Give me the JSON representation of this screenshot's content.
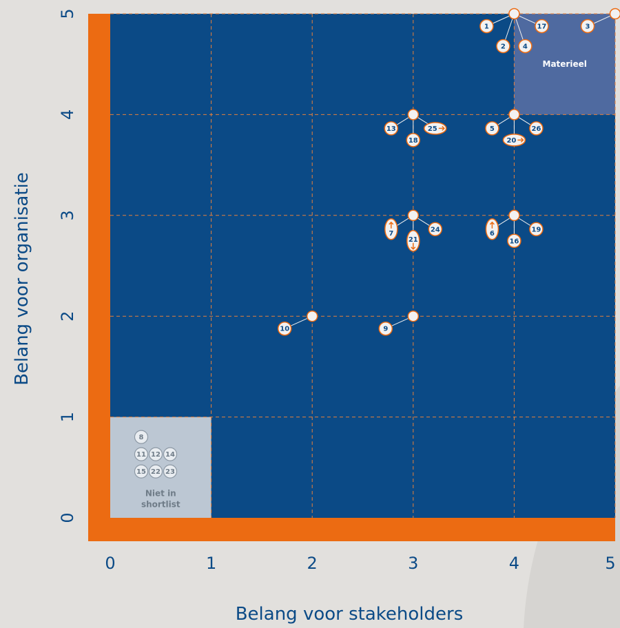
{
  "chart_data": {
    "type": "scatter",
    "xlabel": "Belang voor stakeholders",
    "ylabel": "Belang voor organisatie",
    "xlim": [
      0,
      5
    ],
    "ylim": [
      0,
      5
    ],
    "x_ticks": [
      "0",
      "1",
      "2",
      "3",
      "4",
      "5"
    ],
    "y_ticks": [
      "0",
      "1",
      "2",
      "3",
      "4",
      "5"
    ],
    "grid": true,
    "colors": {
      "background": "#e2e0dd",
      "plot": "#0b4a86",
      "axis_bar": "#ec6b12",
      "grid": "#e8803a",
      "node": "#f2f2f2",
      "label_text": "#0b4a86",
      "arrow": "#ec6b12",
      "zone_materieel": "#4f6aa0",
      "zone_shortlist": "#bcc7d3"
    },
    "zones": [
      {
        "name": "Materieel",
        "x_range": [
          4,
          5
        ],
        "y_range": [
          4,
          5
        ]
      },
      {
        "name": "Niet in shortlist",
        "x_range": [
          0,
          1
        ],
        "y_range": [
          0,
          1
        ]
      }
    ],
    "groups": [
      {
        "x": 4,
        "y": 5,
        "items": [
          {
            "label": "1"
          },
          {
            "label": "17"
          },
          {
            "label": "2"
          },
          {
            "label": "4"
          }
        ]
      },
      {
        "x": 5,
        "y": 5,
        "items": [
          {
            "label": "3"
          }
        ]
      },
      {
        "x": 3,
        "y": 4,
        "items": [
          {
            "label": "13"
          },
          {
            "label": "25",
            "arrow": "right"
          },
          {
            "label": "18"
          }
        ]
      },
      {
        "x": 4,
        "y": 4,
        "items": [
          {
            "label": "5"
          },
          {
            "label": "26"
          },
          {
            "label": "20",
            "arrow": "right"
          }
        ]
      },
      {
        "x": 3,
        "y": 3,
        "items": [
          {
            "label": "7",
            "arrow": "up"
          },
          {
            "label": "24"
          },
          {
            "label": "21",
            "arrow": "down"
          }
        ]
      },
      {
        "x": 4,
        "y": 3,
        "items": [
          {
            "label": "6",
            "arrow": "up"
          },
          {
            "label": "19"
          },
          {
            "label": "16"
          }
        ]
      },
      {
        "x": 2,
        "y": 2,
        "items": [
          {
            "label": "10"
          }
        ]
      },
      {
        "x": 3,
        "y": 2,
        "items": [
          {
            "label": "9"
          }
        ]
      }
    ],
    "shortlist_items": [
      "8",
      "11",
      "12",
      "14",
      "15",
      "22",
      "23"
    ]
  }
}
